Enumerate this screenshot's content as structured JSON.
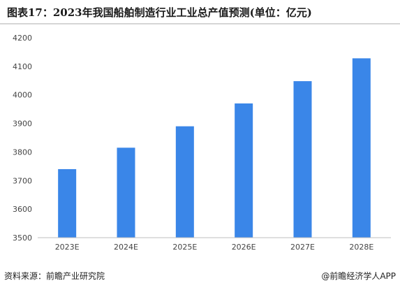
{
  "title": "图表17：2023年我国船舶制造行业工业总产值预测(单位：亿元)",
  "footer": {
    "source": "资料来源：前瞻产业研究院",
    "credit": "@前瞻经济学人APP"
  },
  "colors": {
    "bar": "#3a86e8",
    "axis": "#bfbfbf"
  },
  "chart_data": {
    "type": "bar",
    "categories": [
      "2023E",
      "2024E",
      "2025E",
      "2026E",
      "2027E",
      "2028E"
    ],
    "values": [
      3740,
      3815,
      3890,
      3970,
      4048,
      4128
    ],
    "ylim": [
      3500,
      4200
    ],
    "yticks": [
      3500,
      3600,
      3700,
      3800,
      3900,
      4000,
      4100,
      4200
    ],
    "grid": false
  }
}
